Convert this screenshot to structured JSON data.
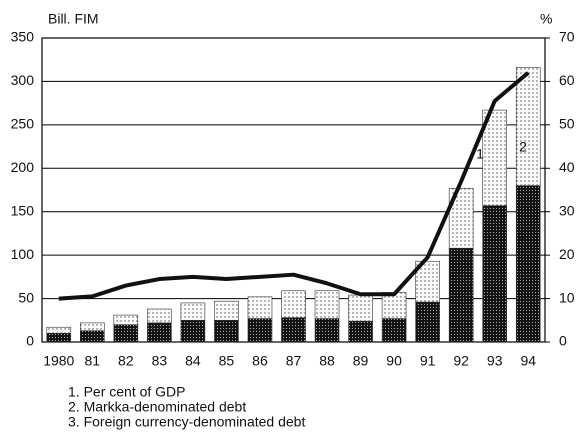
{
  "chart_data": {
    "type": "bar",
    "y_label": "Bill. FIM",
    "y2_label": "%",
    "categories": [
      "1980",
      "81",
      "82",
      "83",
      "84",
      "85",
      "86",
      "87",
      "88",
      "89",
      "90",
      "91",
      "92",
      "93",
      "94"
    ],
    "series": [
      {
        "name": "3. Foreign currency-denominated debt",
        "color": "#1a1a1a",
        "values": [
          10,
          13,
          20,
          22,
          25,
          25,
          27,
          28,
          27,
          24,
          27,
          46,
          108,
          157,
          180
        ]
      },
      {
        "name": "2. Markka-denominated debt",
        "color": "#f2f2f2",
        "values": [
          7,
          9,
          11,
          16,
          20,
          22,
          25,
          31,
          32,
          30,
          30,
          47,
          69,
          110,
          136
        ]
      },
      {
        "name": "1. Per cent of GDP",
        "color": "#111111",
        "axis": "y2",
        "values": [
          10,
          10.5,
          13,
          14.5,
          15,
          14.5,
          15,
          15.5,
          13.5,
          11,
          11,
          19.5,
          37,
          55.5,
          62
        ]
      }
    ],
    "annotations": [
      "1",
      "2",
      "3"
    ],
    "ylim": [
      0,
      350
    ],
    "yticks": [
      0,
      50,
      100,
      150,
      200,
      250,
      300,
      350
    ],
    "y2lim": [
      0,
      70
    ],
    "y2ticks": [
      0,
      10,
      20,
      30,
      40,
      50,
      60,
      70
    ],
    "grid": true
  }
}
